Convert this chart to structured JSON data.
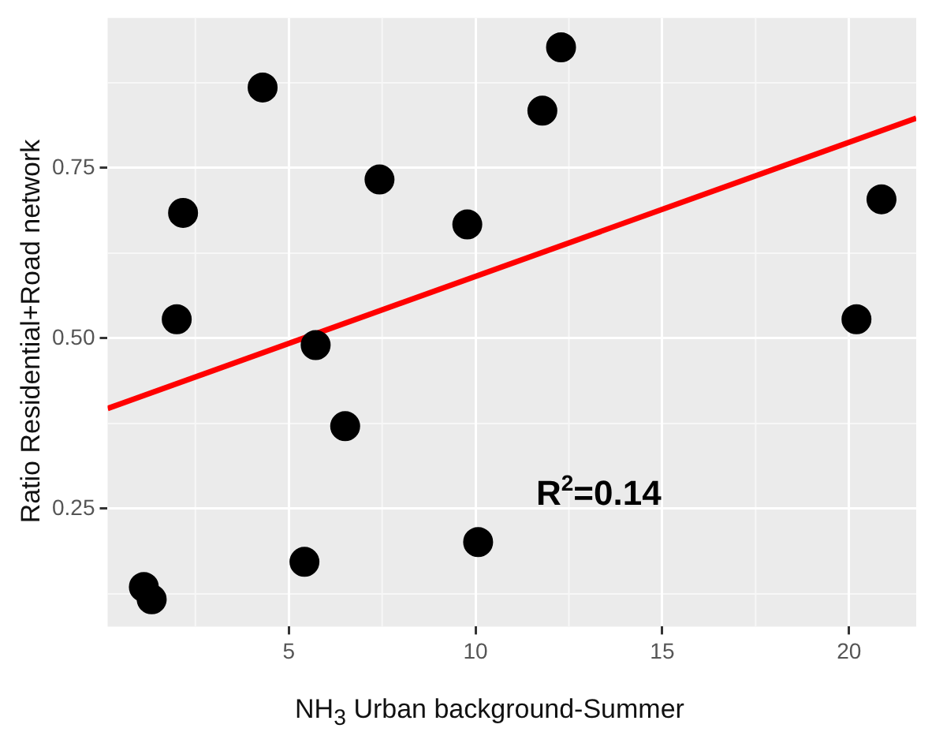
{
  "chart_data": {
    "type": "scatter",
    "xlabel": "NH$_{3}$ Urban background-Summer",
    "ylabel": "Ratio Residential+Road network",
    "annotations": [
      "R$^{2}$=0.14"
    ],
    "series": [
      {
        "marker": "circle",
        "color": "#000000",
        "x": [
          1.12,
          1.33,
          2.0,
          2.17,
          4.3,
          5.72,
          5.42,
          6.51,
          7.43,
          9.78,
          10.07,
          11.79,
          12.29,
          20.2,
          20.87
        ],
        "values": [
          0.135,
          0.117,
          0.528,
          0.684,
          0.868,
          0.49,
          0.172,
          0.371,
          0.733,
          0.667,
          0.201,
          0.834,
          0.927,
          0.528,
          0.704
        ]
      },
      {
        "type": "line",
        "marker": "none",
        "color": "#ff0000",
        "x": [
          0.15,
          21.8
        ],
        "values": [
          0.397,
          0.823
        ]
      }
    ],
    "xlim": [
      0.15,
      21.8
    ],
    "ylim": [
      0.077,
      0.97
    ],
    "xticks": [
      5,
      10,
      15,
      20
    ],
    "yticks": [
      {
        "value": 0.25,
        "label": "0.25"
      },
      {
        "value": 0.5,
        "label": "0.50"
      },
      {
        "value": 0.75,
        "label": "0.75"
      }
    ],
    "grid": true,
    "legend": false
  }
}
